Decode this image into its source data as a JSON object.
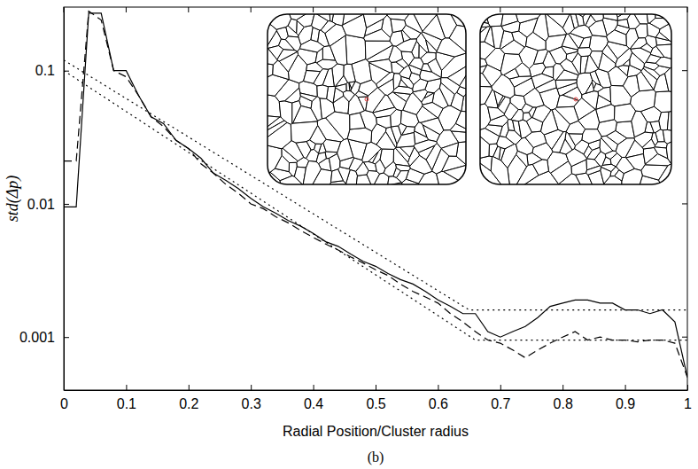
{
  "chart_data": {
    "type": "line",
    "caption": "(b)",
    "x_label": "Radial Position/Cluster radius",
    "y_label": "std(Δp)",
    "log": "y",
    "xlim": [
      0,
      1
    ],
    "ylim": [
      0.0004,
      0.3
    ],
    "xticks": [
      0,
      0.1,
      0.2,
      0.3,
      0.4,
      0.5,
      0.6,
      0.7,
      0.8,
      0.9,
      1
    ],
    "yticks": [
      0.001,
      0.01,
      0.1
    ],
    "series": [
      {
        "color": "#000000",
        "line_style": "solid",
        "x": [
          0,
          0.02,
          0.04,
          0.06,
          0.08,
          0.1,
          0.12,
          0.14,
          0.16,
          0.18,
          0.2,
          0.22,
          0.24,
          0.26,
          0.28,
          0.3,
          0.32,
          0.34,
          0.36,
          0.38,
          0.4,
          0.42,
          0.44,
          0.46,
          0.48,
          0.5,
          0.52,
          0.54,
          0.56,
          0.58,
          0.6,
          0.62,
          0.64,
          0.66,
          0.68,
          0.7,
          0.72,
          0.74,
          0.76,
          0.78,
          0.8,
          0.82,
          0.84,
          0.86,
          0.88,
          0.9,
          0.92,
          0.94,
          0.96,
          0.98,
          1
        ],
        "values": [
          0.0095,
          0.0095,
          0.27,
          0.27,
          0.1,
          0.1,
          0.065,
          0.045,
          0.04,
          0.03,
          0.026,
          0.022,
          0.017,
          0.015,
          0.013,
          0.011,
          0.0095,
          0.0085,
          0.0075,
          0.0068,
          0.006,
          0.0052,
          0.0048,
          0.0042,
          0.0037,
          0.0034,
          0.003,
          0.0027,
          0.0025,
          0.0022,
          0.0019,
          0.0017,
          0.0015,
          0.0015,
          0.0011,
          0.001,
          0.0011,
          0.0012,
          0.0014,
          0.0017,
          0.0018,
          0.0019,
          0.0019,
          0.0018,
          0.0018,
          0.0016,
          0.0016,
          0.0015,
          0.0016,
          0.0013,
          0.0005
        ]
      },
      {
        "color": "#000000",
        "line_style": "dashed",
        "x": [
          0,
          0.02,
          0.04,
          0.06,
          0.08,
          0.1,
          0.12,
          0.14,
          0.16,
          0.18,
          0.2,
          0.22,
          0.24,
          0.26,
          0.28,
          0.3,
          0.32,
          0.34,
          0.36,
          0.38,
          0.4,
          0.42,
          0.44,
          0.46,
          0.48,
          0.5,
          0.52,
          0.54,
          0.56,
          0.58,
          0.6,
          0.62,
          0.64,
          0.66,
          0.68,
          0.7,
          0.72,
          0.74,
          0.76,
          0.78,
          0.8,
          0.82,
          0.84,
          0.86,
          0.88,
          0.9,
          0.92,
          0.94,
          0.96,
          0.98,
          1
        ],
        "values": [
          0.021,
          0.021,
          0.28,
          0.24,
          0.1,
          0.09,
          0.065,
          0.045,
          0.038,
          0.03,
          0.026,
          0.02,
          0.017,
          0.014,
          0.012,
          0.01,
          0.0092,
          0.008,
          0.0072,
          0.0063,
          0.0056,
          0.005,
          0.0045,
          0.004,
          0.0036,
          0.0032,
          0.0029,
          0.0025,
          0.0022,
          0.002,
          0.0018,
          0.0015,
          0.0013,
          0.0011,
          0.00095,
          0.0009,
          0.0008,
          0.0007,
          0.0008,
          0.0009,
          0.001,
          0.0011,
          0.00095,
          0.001,
          0.00095,
          0.00095,
          0.00092,
          0.00095,
          0.00095,
          0.0009,
          0.0005
        ]
      },
      {
        "color": "#000000",
        "line_style": "dotted",
        "x": [
          0,
          0.65,
          1
        ],
        "values": [
          0.12,
          0.0016,
          0.0016
        ]
      },
      {
        "color": "#000000",
        "line_style": "dotted",
        "x": [
          0,
          0.66,
          1
        ],
        "values": [
          0.1,
          0.00095,
          0.00095
        ]
      }
    ]
  }
}
